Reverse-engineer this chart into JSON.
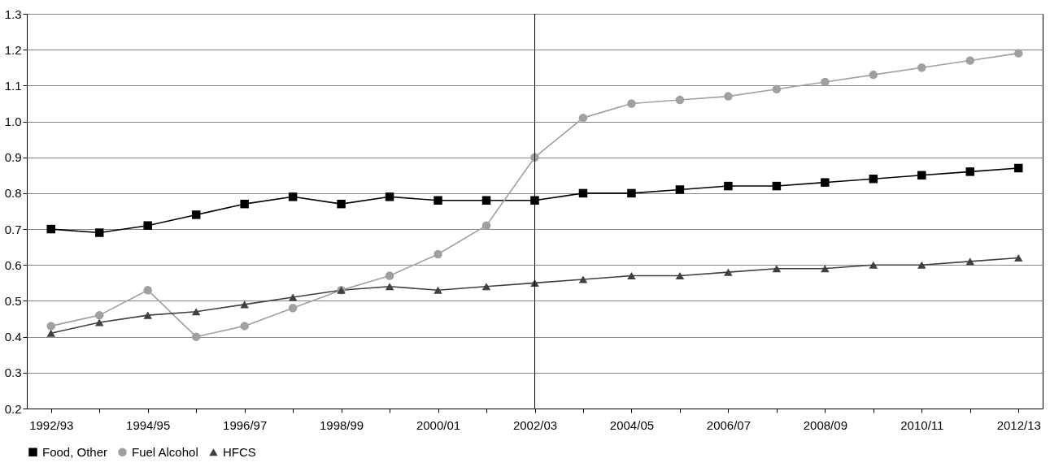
{
  "chart_data": {
    "type": "line",
    "categories": [
      "1992/93",
      null,
      "1994/95",
      null,
      "1996/97",
      null,
      "1998/99",
      null,
      "2000/01",
      null,
      "2002/03",
      null,
      "2004/05",
      null,
      "2006/07",
      null,
      "2008/09",
      null,
      "2010/11",
      null,
      "2012/13"
    ],
    "series": [
      {
        "name": "Food, Other",
        "color": "#000000",
        "marker": "square",
        "values": [
          0.7,
          0.69,
          0.71,
          0.74,
          0.77,
          0.79,
          0.77,
          0.79,
          0.78,
          0.78,
          0.78,
          0.8,
          0.8,
          0.81,
          0.82,
          0.82,
          0.83,
          0.84,
          0.85,
          0.86,
          0.87
        ]
      },
      {
        "name": "Fuel Alcohol",
        "color": "#a0a0a0",
        "marker": "circle",
        "values": [
          0.43,
          0.46,
          0.53,
          0.4,
          0.43,
          0.48,
          0.53,
          0.57,
          0.63,
          0.71,
          0.9,
          1.01,
          1.05,
          1.06,
          1.07,
          1.09,
          1.11,
          1.13,
          1.15,
          1.17,
          1.19
        ]
      },
      {
        "name": "HFCS",
        "color": "#404040",
        "marker": "triangle",
        "values": [
          0.41,
          0.44,
          0.46,
          0.47,
          0.49,
          0.51,
          0.53,
          0.54,
          0.53,
          0.54,
          0.55,
          0.56,
          0.57,
          0.57,
          0.58,
          0.59,
          0.59,
          0.6,
          0.6,
          0.61,
          0.62
        ]
      }
    ],
    "ylim": [
      0.2,
      1.3
    ],
    "yticks": [
      0.2,
      0.3,
      0.4,
      0.5,
      0.6,
      0.7,
      0.8,
      0.9,
      {
        "value": 1.0,
        "label": "1.0"
      },
      1.1,
      1.2,
      1.3
    ],
    "ref_lines": [
      {
        "axis": "x",
        "value": "2002/03"
      }
    ],
    "grid": "y",
    "legend": "bottom"
  }
}
